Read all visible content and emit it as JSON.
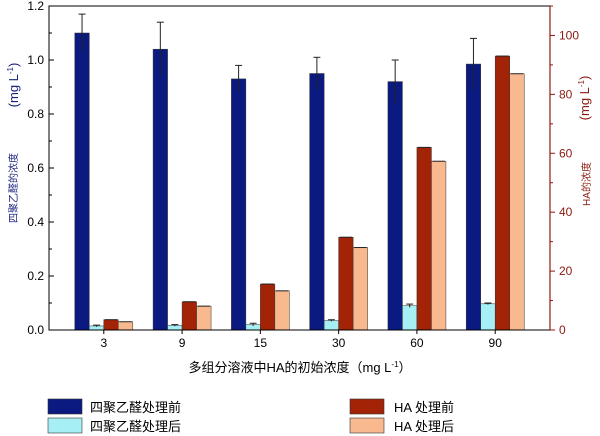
{
  "chart_data": {
    "type": "bar",
    "title": "",
    "xlabel": "多组分溶液中HA的初始浓度（mg L",
    "xlabel_sup": "-1",
    "xlabel_end": "）",
    "ylabel_left": "四聚乙醛的浓度",
    "ylabel_left_unit": "(mg L",
    "ylabel_right": "HA的浓度",
    "ylabel_right_unit": "(mg L",
    "unit_sup": "-1",
    "unit_end": ")",
    "categories": [
      "3",
      "9",
      "15",
      "30",
      "60",
      "90"
    ],
    "ylim_left": [
      0,
      1.2
    ],
    "yticks_left": [
      "0.0",
      "0.2",
      "0.4",
      "0.6",
      "0.8",
      "1.0",
      "1.2"
    ],
    "ylim_right": [
      0,
      110
    ],
    "yticks_right": [
      "0",
      "20",
      "40",
      "60",
      "80",
      "100"
    ],
    "grid": false,
    "legend_position": "bottom",
    "series": [
      {
        "name": "四聚乙醛处理前",
        "axis": "left",
        "color": "#0a1a80",
        "values": [
          1.1,
          1.04,
          0.93,
          0.95,
          0.92,
          0.985
        ],
        "errors": [
          0.07,
          0.1,
          0.05,
          0.06,
          0.08,
          0.095
        ]
      },
      {
        "name": "四聚乙醛处理后",
        "axis": "left",
        "color": "#a6f0f5",
        "values": [
          0.015,
          0.017,
          0.02,
          0.035,
          0.09,
          0.097
        ],
        "errors": [
          0.003,
          0.003,
          0.005,
          0.003,
          0.006,
          0.003
        ]
      },
      {
        "name": "HA 处理前",
        "axis": "right",
        "color": "#a22306",
        "values": [
          3.5,
          9.6,
          15.6,
          31.5,
          62,
          93
        ],
        "errors": [
          0,
          0,
          0,
          0,
          0,
          0
        ]
      },
      {
        "name": "HA 处理后",
        "axis": "right",
        "color": "#f8b98f",
        "values": [
          2.8,
          8.1,
          13.3,
          28,
          57.3,
          87
        ],
        "errors": [
          0,
          0,
          0,
          0,
          0,
          0
        ]
      }
    ],
    "colors": {
      "left_axis": "#1a237e",
      "right_axis": "#8b1a10"
    }
  }
}
